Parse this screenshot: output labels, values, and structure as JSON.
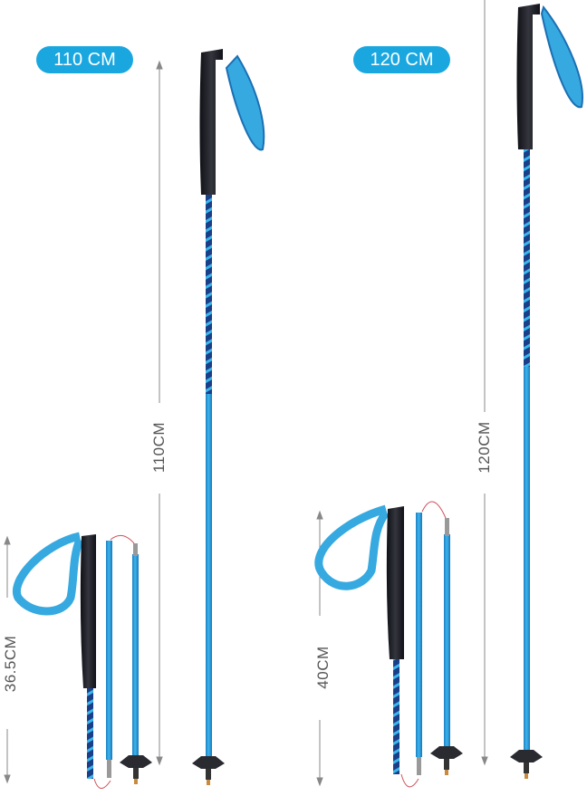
{
  "badges": [
    {
      "label": "110 CM"
    },
    {
      "label": "120 CM"
    }
  ],
  "dimensions": {
    "extended_110": "110CM",
    "extended_120": "120CM",
    "folded_short": "36.5CM",
    "folded_long": "40CM"
  },
  "colors": {
    "badge": "#1aa7e0",
    "pole": "#2a9fd8",
    "grip": "#1e1f26",
    "cord": "#d0505a"
  }
}
